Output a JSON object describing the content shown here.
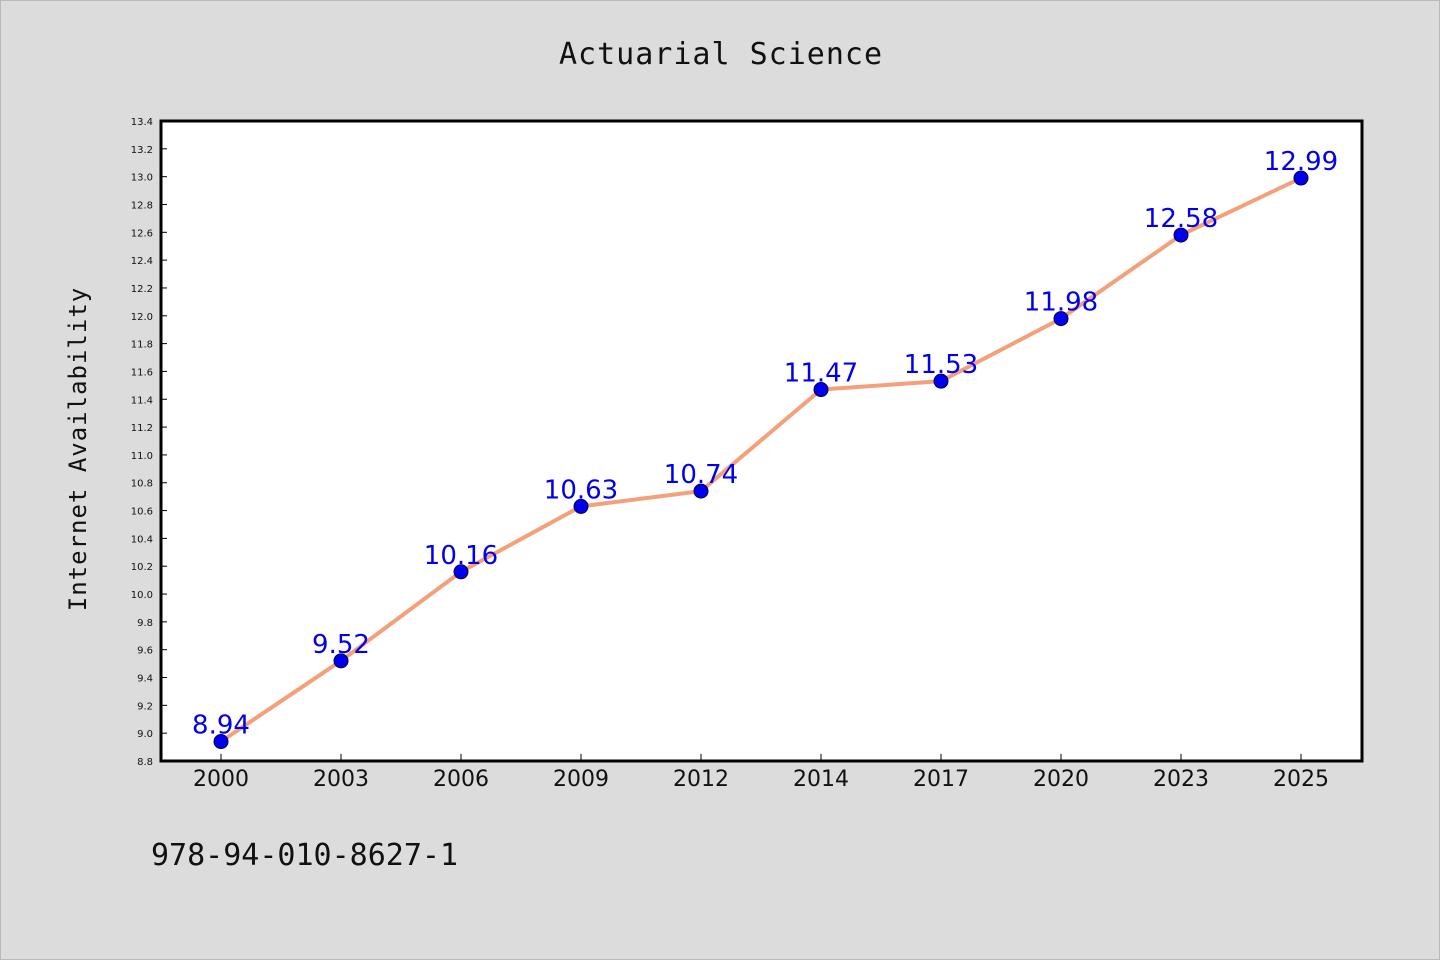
{
  "chart_data": {
    "type": "line",
    "title": "Actuarial Science",
    "xlabel": "",
    "ylabel": "Internet Availability",
    "categories": [
      "2000",
      "2003",
      "2006",
      "2009",
      "2012",
      "2014",
      "2017",
      "2020",
      "2023",
      "2025"
    ],
    "series": [
      {
        "values": [
          8.94,
          9.52,
          10.16,
          10.63,
          10.74,
          11.47,
          11.53,
          11.98,
          12.58,
          12.99
        ],
        "data_labels": [
          "8.94",
          "9.52",
          "10.16",
          "10.63",
          "10.74",
          "11.47",
          "11.53",
          "11.98",
          "12.58",
          "12.99"
        ]
      }
    ],
    "ylim": [
      8.8,
      13.4
    ],
    "yticks": [
      "8.8",
      "9.0",
      "9.2",
      "9.4",
      "9.6",
      "9.8",
      "10.0",
      "10.2",
      "10.4",
      "10.6",
      "10.8",
      "11.0",
      "11.2",
      "11.4",
      "11.6",
      "11.8",
      "12.0",
      "12.2",
      "12.4",
      "12.6",
      "12.8",
      "13.0",
      "13.2",
      "13.4"
    ],
    "grid": false,
    "legend": "none",
    "colors": {
      "line": "#f4a07a",
      "marker": "#0000ee",
      "label": "#0000ee",
      "plot_background": "#ffffff",
      "page_background": "#dcdcdc"
    }
  },
  "footer": {
    "identifier": "978-94-010-8627-1"
  }
}
